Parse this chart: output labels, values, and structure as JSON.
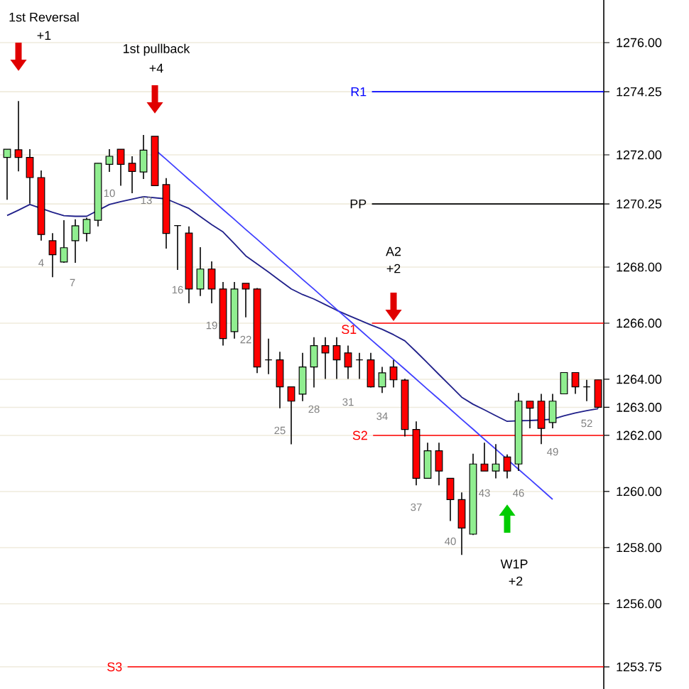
{
  "chart_data": {
    "type": "candlestick",
    "categories": [
      null,
      null,
      null,
      null,
      null,
      null,
      null,
      null,
      null,
      null,
      null,
      null,
      null,
      null,
      null,
      null,
      null,
      null,
      null,
      null,
      null,
      null,
      null,
      null,
      null,
      null,
      null,
      null,
      null,
      null,
      null,
      null,
      null,
      null,
      null,
      null,
      null,
      null,
      null,
      null,
      null,
      null,
      null,
      null,
      null,
      null,
      null,
      null,
      null,
      null,
      null,
      null,
      null
    ],
    "ohlc": [
      [
        1271.91,
        1272.2,
        1270.4,
        1272.2
      ],
      [
        1272.18,
        1273.92,
        1271.41,
        1271.91
      ],
      [
        1271.91,
        1272.2,
        1270.26,
        1271.19
      ],
      [
        1271.19,
        1271.44,
        1268.94,
        1269.16
      ],
      [
        1268.94,
        1269.21,
        1267.64,
        1268.44
      ],
      [
        1268.18,
        1269.67,
        1268.15,
        1268.69
      ],
      [
        1268.94,
        1269.7,
        1268.15,
        1269.47
      ],
      [
        1269.2,
        1269.76,
        1268.91,
        1269.7
      ],
      [
        1269.67,
        1271.7,
        1269.45,
        1271.7
      ],
      [
        1271.66,
        1272.2,
        1271.39,
        1271.95
      ],
      [
        1272.2,
        1272.2,
        1270.9,
        1271.66
      ],
      [
        1271.7,
        1271.95,
        1270.63,
        1271.41
      ],
      [
        1271.39,
        1272.71,
        1271.14,
        1272.17
      ],
      [
        1272.66,
        1272.66,
        1270.9,
        1270.9
      ],
      [
        1270.94,
        1271.17,
        1268.66,
        1269.2
      ],
      [
        1269.48,
        1269.48,
        1267.9,
        1269.48
      ],
      [
        1269.21,
        1269.45,
        1266.71,
        1267.22
      ],
      [
        1267.22,
        1268.71,
        1266.97,
        1267.93
      ],
      [
        1267.93,
        1268.2,
        1266.71,
        1267.22
      ],
      [
        1267.22,
        1267.47,
        1265.2,
        1265.45
      ],
      [
        1265.7,
        1267.47,
        1265.45,
        1267.22
      ],
      [
        1267.42,
        1267.42,
        1266.21,
        1267.22
      ],
      [
        1267.22,
        1267.25,
        1264.22,
        1264.44
      ],
      [
        1264.69,
        1265.45,
        1264.18,
        1264.69
      ],
      [
        1264.69,
        1264.98,
        1262.97,
        1263.73
      ],
      [
        1263.73,
        1263.73,
        1261.68,
        1263.22
      ],
      [
        1263.47,
        1264.94,
        1263.22,
        1264.44
      ],
      [
        1264.44,
        1265.5,
        1263.71,
        1265.2
      ],
      [
        1265.2,
        1265.5,
        1264.01,
        1264.94
      ],
      [
        1265.2,
        1265.5,
        1264.01,
        1264.69
      ],
      [
        1264.94,
        1265.2,
        1264.01,
        1264.44
      ],
      [
        1264.69,
        1264.94,
        1264.01,
        1264.69
      ],
      [
        1264.69,
        1264.94,
        1263.71,
        1263.73
      ],
      [
        1263.73,
        1264.44,
        1263.51,
        1264.23
      ],
      [
        1264.44,
        1264.69,
        1263.71,
        1263.98
      ],
      [
        1263.97,
        1264.02,
        1261.96,
        1262.21
      ],
      [
        1262.21,
        1262.5,
        1260.22,
        1260.47
      ],
      [
        1260.47,
        1261.74,
        1260.47,
        1261.45
      ],
      [
        1261.45,
        1261.74,
        1260.22,
        1260.73
      ],
      [
        1260.47,
        1260.47,
        1258.95,
        1259.71
      ],
      [
        1259.71,
        1259.97,
        1257.74,
        1258.7
      ],
      [
        1258.48,
        1261.35,
        1258.45,
        1260.98
      ],
      [
        1260.98,
        1261.74,
        1260.73,
        1260.73
      ],
      [
        1260.73,
        1261.69,
        1260.47,
        1260.98
      ],
      [
        1261.23,
        1261.32,
        1260.47,
        1260.73
      ],
      [
        1260.98,
        1263.51,
        1260.73,
        1263.22
      ],
      [
        1263.22,
        1263.22,
        1262.25,
        1262.97
      ],
      [
        1263.22,
        1263.48,
        1261.69,
        1262.25
      ],
      [
        1262.46,
        1263.48,
        1262.25,
        1263.22
      ],
      [
        1263.48,
        1264.24,
        1263.48,
        1264.24
      ],
      [
        1264.24,
        1264.24,
        1263.48,
        1263.73
      ],
      [
        1263.73,
        1263.98,
        1263.22,
        1263.73
      ],
      [
        1263.98,
        1263.98,
        1262.97,
        1263.0
      ]
    ],
    "colors": [
      "#90ee90",
      "#ff0000",
      "#ff0000",
      "#ff0000",
      "#ff0000",
      "#90ee90",
      "#90ee90",
      "#90ee90",
      "#90ee90",
      "#90ee90",
      "#ff0000",
      "#ff0000",
      "#90ee90",
      "#ff0000",
      "#ff0000",
      "#000000",
      "#ff0000",
      "#90ee90",
      "#ff0000",
      "#ff0000",
      "#90ee90",
      "#ff0000",
      "#ff0000",
      "#000000",
      "#ff0000",
      "#ff0000",
      "#90ee90",
      "#90ee90",
      "#ff0000",
      "#ff0000",
      "#ff0000",
      "#000000",
      "#ff0000",
      "#90ee90",
      "#ff0000",
      "#ff0000",
      "#ff0000",
      "#90ee90",
      "#ff0000",
      "#ff0000",
      "#ff0000",
      "#90ee90",
      "#ff0000",
      "#90ee90",
      "#ff0000",
      "#90ee90",
      "#ff0000",
      "#ff0000",
      "#90ee90",
      "#90ee90",
      "#ff0000",
      "#000000",
      "#ff0000"
    ],
    "series": [
      {
        "type": "line",
        "color": "#20208a",
        "values": [
          1269.84,
          1270.03,
          1270.23,
          1270.09,
          1269.95,
          1269.83,
          1269.81,
          1269.81,
          1270.02,
          1270.23,
          1270.33,
          1270.42,
          1270.51,
          1270.47,
          1270.43,
          1270.26,
          1270.09,
          1269.8,
          1269.51,
          1269.25,
          1268.83,
          1268.4,
          1268.11,
          1267.82,
          1267.52,
          1267.22,
          1267.02,
          1266.86,
          1266.66,
          1266.46,
          1266.28,
          1266.11,
          1265.94,
          1265.78,
          1265.59,
          1265.37,
          1264.98,
          1264.58,
          1264.17,
          1263.77,
          1263.36,
          1263.11,
          1262.91,
          1262.7,
          1262.5,
          1262.52,
          1262.53,
          1262.55,
          1262.58,
          1262.7,
          1262.8,
          1262.88,
          1262.95
        ]
      },
      {
        "type": "line",
        "color": "#4040ff",
        "values": [
          null,
          null,
          null,
          null,
          null,
          null,
          null,
          null,
          null,
          null,
          null,
          null,
          null,
          1272.19,
          1271.84,
          1271.48,
          1271.12,
          1270.77,
          1270.41,
          1270.05,
          1269.7,
          1269.34,
          1268.99,
          1268.63,
          1268.27,
          1267.92,
          1267.56,
          1267.21,
          1266.85,
          1266.49,
          1266.14,
          1265.78,
          1265.42,
          1265.07,
          1264.71,
          1264.36,
          1264.0,
          1263.64,
          1263.29,
          1262.93,
          1262.57,
          1262.22,
          1261.86,
          1261.51,
          1261.15,
          1260.79,
          1260.44,
          1260.08,
          1259.72,
          null,
          null,
          null,
          null
        ]
      }
    ],
    "ylim": [
      1252.96,
      1277.52
    ],
    "yticks": [
      {
        "value": 1253.75,
        "label": "1253.75"
      },
      {
        "value": 1256,
        "label": "1256.00"
      },
      {
        "value": 1258,
        "label": "1258.00"
      },
      {
        "value": 1260,
        "label": "1260.00"
      },
      {
        "value": 1262,
        "label": "1262.00"
      },
      {
        "value": 1263,
        "label": "1263.00"
      },
      {
        "value": 1264,
        "label": "1264.00"
      },
      {
        "value": 1266,
        "label": "1266.00"
      },
      {
        "value": 1268,
        "label": "1268.00"
      },
      {
        "value": 1270.25,
        "label": "1270.25"
      },
      {
        "value": 1272,
        "label": "1272.00"
      },
      {
        "value": 1274.25,
        "label": "1274.25"
      },
      {
        "value": 1276,
        "label": "1276.00"
      }
    ],
    "tick_labels": "y",
    "grid": "y",
    "ref_lines": [
      {
        "axis": "y",
        "value": 1274.25,
        "label": "R1",
        "color": "#0000ff"
      },
      {
        "axis": "y",
        "value": 1270.25,
        "label": "PP",
        "color": "#000000"
      },
      {
        "axis": "y",
        "value": 1266,
        "label": "S1",
        "color": "#ff0000"
      },
      {
        "axis": "y",
        "value": 1262,
        "label": "S2",
        "color": "#ff0000"
      },
      {
        "axis": "y",
        "value": 1253.75,
        "label": "S3",
        "color": "#ff0000"
      }
    ],
    "annotations": [
      "1st Reversal",
      "+1",
      "1st pullback",
      "+4",
      "A2",
      "+2",
      "W1P",
      "+2",
      "4",
      "7",
      "10",
      "13",
      "16",
      "19",
      "22",
      "25",
      "28",
      "31",
      "34",
      "37",
      "40",
      "43",
      "46",
      "49",
      "52"
    ]
  }
}
